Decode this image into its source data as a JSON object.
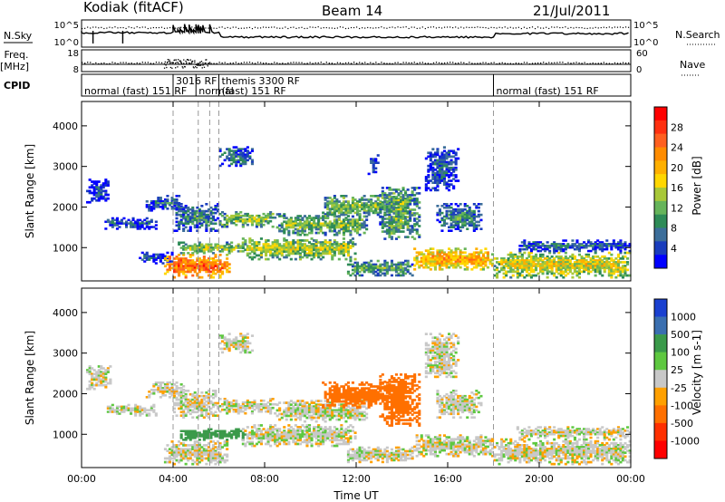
{
  "header": {
    "station": "Kodiak (fitACF)",
    "beam": "Beam 14",
    "date": "21/Jul/2011"
  },
  "side_labels": {
    "nsky": "N.Sky",
    "freq_top": "Freq.",
    "freq_unit": "[MHz]",
    "cpid": "CPID",
    "nsearch": "N.Search",
    "nave": "Nave"
  },
  "status_axes": {
    "noise_ticks": [
      "10^5",
      "10^0"
    ],
    "noise_right_ticks": [
      "10^5",
      "10^0"
    ],
    "freq_ticks": [
      "18",
      "8"
    ],
    "nave_ticks": [
      "60",
      "0"
    ]
  },
  "cpid_segments": [
    {
      "start": 0.0,
      "label": "normal (fast) 151 RF",
      "row": 2
    },
    {
      "start": 4.0,
      "label": "3016 RF",
      "row": 1
    },
    {
      "start": 5.0,
      "label": "normal",
      "row": 2
    },
    {
      "start": 6.0,
      "label": "themis 3300 RF",
      "row": 1
    },
    {
      "start": 6.0,
      "label": "(fast) 151 RF",
      "row": 2
    },
    {
      "start": 18.0,
      "label": "normal (fast) 151 RF",
      "row": 2
    }
  ],
  "mode_changes_hours": [
    4.0,
    5.1,
    5.6,
    6.0,
    18.0
  ],
  "chart_data": [
    {
      "type": "heatmap",
      "panel": "power",
      "ylabel": "Slant Range [km]",
      "xlabel": "",
      "xlim": [
        0,
        24
      ],
      "ylim": [
        180,
        4600
      ],
      "yticks": [
        1000,
        2000,
        3000,
        4000
      ],
      "colorbar": {
        "label": "Power [dB]",
        "ticks": [
          4,
          8,
          12,
          16,
          20,
          24,
          28
        ],
        "range": [
          0,
          32
        ],
        "colors": [
          "#0000ff",
          "#1a3dbd",
          "#3c6e9a",
          "#2e8b57",
          "#66b45a",
          "#a8c838",
          "#ffd700",
          "#ffb000",
          "#ff8c00",
          "#ff6020",
          "#ff3010",
          "#ff0000"
        ]
      },
      "regions": [
        {
          "t0": 0.2,
          "t1": 1.3,
          "r0": 2100,
          "r1": 2700,
          "val": 6
        },
        {
          "t0": 1.0,
          "t1": 3.3,
          "r0": 1450,
          "r1": 1750,
          "val": 7
        },
        {
          "t0": 2.8,
          "t1": 4.5,
          "r0": 1900,
          "r1": 2300,
          "val": 8
        },
        {
          "t0": 4.0,
          "t1": 6.0,
          "r0": 1400,
          "r1": 2100,
          "val": 10
        },
        {
          "t0": 2.5,
          "t1": 4.0,
          "r0": 600,
          "r1": 900,
          "val": 7
        },
        {
          "t0": 3.6,
          "t1": 6.5,
          "r0": 250,
          "r1": 850,
          "val": 26
        },
        {
          "t0": 4.2,
          "t1": 7.2,
          "r0": 850,
          "r1": 1150,
          "val": 15
        },
        {
          "t0": 6.0,
          "t1": 8.5,
          "r0": 1500,
          "r1": 1900,
          "val": 14
        },
        {
          "t0": 7.0,
          "t1": 12.0,
          "r0": 700,
          "r1": 1250,
          "val": 16
        },
        {
          "t0": 8.5,
          "t1": 12.5,
          "r0": 1300,
          "r1": 1850,
          "val": 14
        },
        {
          "t0": 10.5,
          "t1": 13.5,
          "r0": 1750,
          "r1": 2300,
          "val": 14
        },
        {
          "t0": 11.5,
          "t1": 14.5,
          "r0": 300,
          "r1": 700,
          "val": 12
        },
        {
          "t0": 13.0,
          "t1": 14.8,
          "r0": 1200,
          "r1": 2500,
          "val": 13
        },
        {
          "t0": 6.0,
          "t1": 7.5,
          "r0": 3000,
          "r1": 3500,
          "val": 9
        },
        {
          "t0": 12.5,
          "t1": 13.0,
          "r0": 2800,
          "r1": 3300,
          "val": 6
        },
        {
          "t0": 14.5,
          "t1": 18.0,
          "r0": 450,
          "r1": 1000,
          "val": 22
        },
        {
          "t0": 15.0,
          "t1": 16.5,
          "r0": 2400,
          "r1": 3500,
          "val": 7
        },
        {
          "t0": 15.5,
          "t1": 17.5,
          "r0": 1400,
          "r1": 2100,
          "val": 10
        },
        {
          "t0": 18.0,
          "t1": 24.0,
          "r0": 250,
          "r1": 900,
          "val": 18
        },
        {
          "t0": 19.0,
          "t1": 24.0,
          "r0": 900,
          "r1": 1200,
          "val": 8
        }
      ]
    },
    {
      "type": "heatmap",
      "panel": "velocity",
      "ylabel": "Slant Range [km]",
      "xlabel": "Time UT",
      "xlim": [
        0,
        24
      ],
      "ylim": [
        180,
        4600
      ],
      "yticks": [
        1000,
        2000,
        3000,
        4000
      ],
      "xticks": [
        "00:00",
        "04:00",
        "08:00",
        "12:00",
        "16:00",
        "20:00",
        "00:00"
      ],
      "colorbar": {
        "label": "Velocity [m s-1]",
        "ticks": [
          1000,
          500,
          100,
          25,
          -25,
          -100,
          -500,
          -1000
        ],
        "colors": [
          "#1a40d0",
          "#3a6fb0",
          "#3a9a4a",
          "#5ec840",
          "#c8c8c8",
          "#ffa000",
          "#ff7000",
          "#ff3000",
          "#ff0000"
        ]
      },
      "regions": [
        {
          "t0": 0.2,
          "t1": 1.3,
          "r0": 2100,
          "r1": 2700,
          "val": 0
        },
        {
          "t0": 1.0,
          "t1": 3.3,
          "r0": 1450,
          "r1": 1750,
          "val": 0
        },
        {
          "t0": 2.8,
          "t1": 4.5,
          "r0": 1900,
          "r1": 2300,
          "val": 0
        },
        {
          "t0": 4.0,
          "t1": 6.0,
          "r0": 1400,
          "r1": 2100,
          "val": 0
        },
        {
          "t0": 3.6,
          "t1": 6.5,
          "r0": 250,
          "r1": 850,
          "val": 0
        },
        {
          "t0": 4.2,
          "t1": 7.2,
          "r0": 850,
          "r1": 1150,
          "val": 200
        },
        {
          "t0": 6.0,
          "t1": 8.5,
          "r0": 1500,
          "r1": 1900,
          "val": 0
        },
        {
          "t0": 7.0,
          "t1": 12.0,
          "r0": 700,
          "r1": 1250,
          "val": 0
        },
        {
          "t0": 8.5,
          "t1": 12.5,
          "r0": 1300,
          "r1": 1850,
          "val": 0
        },
        {
          "t0": 10.5,
          "t1": 13.5,
          "r0": 1650,
          "r1": 2300,
          "val": -150
        },
        {
          "t0": 13.0,
          "t1": 14.8,
          "r0": 1200,
          "r1": 2500,
          "val": -200
        },
        {
          "t0": 11.5,
          "t1": 14.5,
          "r0": 300,
          "r1": 700,
          "val": 0
        },
        {
          "t0": 6.0,
          "t1": 7.5,
          "r0": 3000,
          "r1": 3500,
          "val": 0
        },
        {
          "t0": 14.5,
          "t1": 18.0,
          "r0": 450,
          "r1": 1000,
          "val": 0
        },
        {
          "t0": 15.0,
          "t1": 16.5,
          "r0": 2400,
          "r1": 3500,
          "val": 0
        },
        {
          "t0": 15.5,
          "t1": 17.5,
          "r0": 1400,
          "r1": 2100,
          "val": 0
        },
        {
          "t0": 18.0,
          "t1": 24.0,
          "r0": 250,
          "r1": 900,
          "val": 0
        },
        {
          "t0": 19.0,
          "t1": 24.0,
          "r0": 900,
          "r1": 1200,
          "val": 0
        }
      ]
    }
  ]
}
